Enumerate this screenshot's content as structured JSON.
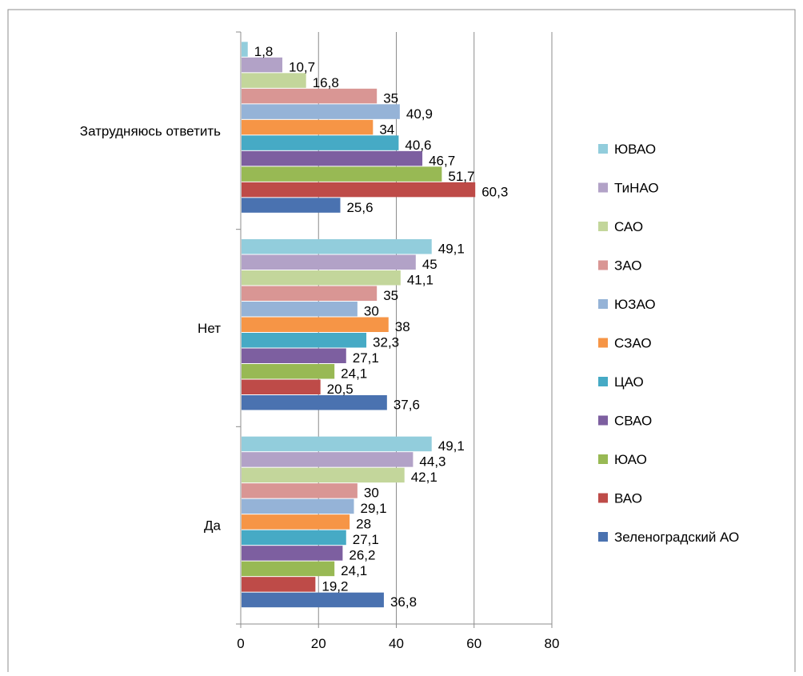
{
  "chart_data": {
    "type": "bar",
    "orientation": "horizontal",
    "categories": [
      "Затрудняюсь ответить",
      "Нет",
      "Да"
    ],
    "xlim": [
      0,
      80
    ],
    "x_ticks": [
      "0",
      "20",
      "40",
      "60",
      "80"
    ],
    "grid": true,
    "legend_position": "right",
    "series": [
      {
        "name": "Зеленоградский АО",
        "color": "#4a72b0",
        "values": [
          25.6,
          37.6,
          36.8
        ],
        "labels": [
          "25,6",
          "37,6",
          "36,8"
        ]
      },
      {
        "name": "ВАО",
        "color": "#be4b48",
        "values": [
          60.3,
          20.5,
          19.2
        ],
        "labels": [
          "60,3",
          "20,5",
          "19,2"
        ]
      },
      {
        "name": "ЮАО",
        "color": "#98b954",
        "values": [
          51.7,
          24.1,
          24.1
        ],
        "labels": [
          "51,7",
          "24,1",
          "24,1"
        ]
      },
      {
        "name": "СВАО",
        "color": "#7d5fa0",
        "values": [
          46.7,
          27.1,
          26.2
        ],
        "labels": [
          "46,7",
          "27,1",
          "26,2"
        ]
      },
      {
        "name": "ЦАО",
        "color": "#46aac5",
        "values": [
          40.6,
          32.3,
          27.1
        ],
        "labels": [
          "40,6",
          "32,3",
          "27,1"
        ]
      },
      {
        "name": "СЗАО",
        "color": "#f69546",
        "values": [
          34,
          38,
          28
        ],
        "labels": [
          "34",
          "38",
          "28"
        ]
      },
      {
        "name": "ЮЗАО",
        "color": "#95b3d7",
        "values": [
          40.9,
          30,
          29.1
        ],
        "labels": [
          "40,9",
          "30",
          "29,1"
        ]
      },
      {
        "name": "ЗАО",
        "color": "#d99694",
        "values": [
          35,
          35,
          30
        ],
        "labels": [
          "35",
          "35",
          "30"
        ]
      },
      {
        "name": "САО",
        "color": "#c3d69b",
        "values": [
          16.8,
          41.1,
          42.1
        ],
        "labels": [
          "16,8",
          "41,1",
          "42,1"
        ]
      },
      {
        "name": "ТиНАО",
        "color": "#b2a2c7",
        "values": [
          10.7,
          45,
          44.3
        ],
        "labels": [
          "10,7",
          "45",
          "44,3"
        ]
      },
      {
        "name": "ЮВАО",
        "color": "#92cddc",
        "values": [
          1.8,
          49.1,
          49.1
        ],
        "labels": [
          "1,8",
          "49,1",
          "49,1"
        ]
      }
    ]
  }
}
